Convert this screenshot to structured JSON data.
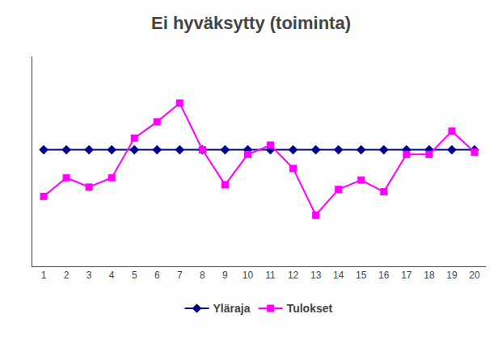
{
  "chart_data": {
    "type": "line",
    "title": "Ei hyväksytty (toiminta)",
    "x": [
      1,
      2,
      3,
      4,
      5,
      6,
      7,
      8,
      9,
      10,
      11,
      12,
      13,
      14,
      15,
      16,
      17,
      18,
      19,
      20
    ],
    "series": [
      {
        "name": "Yläraja",
        "color": "#00008B",
        "marker": "diamond",
        "values": [
          5,
          5,
          5,
          5,
          5,
          5,
          5,
          5,
          5,
          5,
          5,
          5,
          5,
          5,
          5,
          5,
          5,
          5,
          5,
          5
        ]
      },
      {
        "name": "Tulokset",
        "color": "#FF00FF",
        "marker": "square",
        "values": [
          3.0,
          3.8,
          3.4,
          3.8,
          5.5,
          6.2,
          7.0,
          5.0,
          3.5,
          4.8,
          5.2,
          4.2,
          2.2,
          3.3,
          3.7,
          3.2,
          4.8,
          4.8,
          5.8,
          4.9
        ]
      }
    ],
    "xlim": [
      0.5,
      20.5
    ],
    "xticks": [
      1,
      2,
      3,
      4,
      5,
      6,
      7,
      8,
      9,
      10,
      11,
      12,
      13,
      14,
      15,
      16,
      17,
      18,
      19,
      20
    ],
    "ylim": [
      0,
      9
    ],
    "grid": false,
    "legend": "bottom",
    "tick_labels": "x"
  }
}
